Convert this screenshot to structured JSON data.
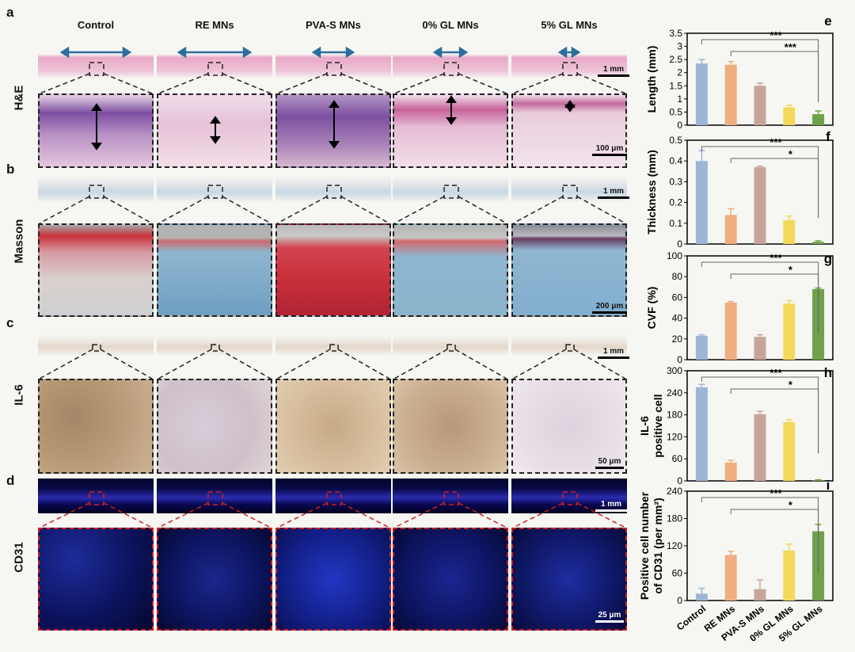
{
  "panels": {
    "a": "a",
    "b": "b",
    "c": "c",
    "d": "d",
    "e": "e",
    "f": "f",
    "g": "g",
    "h": "h",
    "i": "i"
  },
  "columns": [
    "Control",
    "RE MNs",
    "PVA-S MNs",
    "0% GL MNs",
    "5% GL MNs"
  ],
  "rows": {
    "he": "H&E",
    "masson": "Masson",
    "il6": "IL-6",
    "cd31": "CD31"
  },
  "scalebars": {
    "he_top": "1 mm",
    "he_zoom": "100 μm",
    "masson_top": "1 mm",
    "masson_zoom": "200 μm",
    "il6_top": "1 mm",
    "il6_zoom": "50 μm",
    "cd31_top": "1 mm",
    "cd31_zoom": "25 μm"
  },
  "colors": {
    "Control": "#9db5d6",
    "RE MNs": "#efae80",
    "PVA-S MNs": "#c7a49a",
    "0% GL MNs": "#f4d85c",
    "5% GL MNs": "#6ea14a",
    "he_pink": "#e8a9c6",
    "he_purple": "#7d4fa0",
    "masson_blue": "#8fb6d0",
    "masson_red": "#c8303a",
    "il6_brown": "#b99a78",
    "cd31_blue": "#1b2a9a",
    "cd31_red": "#ff2a1a"
  },
  "chart_data": [
    {
      "id": "e",
      "type": "bar",
      "ylabel": "Length (mm)",
      "categories": [
        "Control",
        "RE MNs",
        "PVA-S MNs",
        "0% GL MNs",
        "5% GL MNs"
      ],
      "values": [
        2.35,
        2.3,
        1.5,
        0.68,
        0.42
      ],
      "errors": [
        0.15,
        0.12,
        0.1,
        0.08,
        0.12
      ],
      "ylim": [
        0,
        3.5
      ],
      "yticks": [
        "0",
        "0.5",
        "1",
        "1.5",
        "2",
        "2.5",
        "3",
        "3.5"
      ],
      "significance": [
        {
          "from": "Control",
          "to": "5% GL MNs",
          "label": "***"
        },
        {
          "from": "RE MNs",
          "to": "5% GL MNs",
          "label": "***"
        }
      ]
    },
    {
      "id": "f",
      "type": "bar",
      "ylabel": "Thickness (mm)",
      "categories": [
        "Control",
        "RE MNs",
        "PVA-S MNs",
        "0% GL MNs",
        "5% GL MNs"
      ],
      "values": [
        0.4,
        0.14,
        0.37,
        0.115,
        0.01
      ],
      "errors": [
        0.05,
        0.03,
        0.005,
        0.02,
        0.005
      ],
      "ylim": [
        0,
        0.5
      ],
      "yticks": [
        "0",
        "0.1",
        "0.2",
        "0.3",
        "0.4",
        "0.5"
      ],
      "significance": [
        {
          "from": "Control",
          "to": "5% GL MNs",
          "label": "***"
        },
        {
          "from": "RE MNs",
          "to": "5% GL MNs",
          "label": "*"
        }
      ]
    },
    {
      "id": "g",
      "type": "bar",
      "ylabel": "CVF (%)",
      "categories": [
        "Control",
        "RE MNs",
        "PVA-S MNs",
        "0% GL MNs",
        "5% GL MNs"
      ],
      "values": [
        23,
        55,
        22,
        54,
        68
      ],
      "errors": [
        1,
        1,
        2,
        3,
        1
      ],
      "ylim": [
        0,
        100
      ],
      "yticks": [
        "0",
        "20",
        "40",
        "60",
        "80",
        "100"
      ],
      "significance": [
        {
          "from": "Control",
          "to": "5% GL MNs",
          "label": "***"
        },
        {
          "from": "RE MNs",
          "to": "5% GL MNs",
          "label": "*"
        }
      ]
    },
    {
      "id": "h",
      "type": "bar",
      "ylabel": "IL-6\npositive cell",
      "categories": [
        "Control",
        "RE MNs",
        "PVA-S MNs",
        "0% GL MNs",
        "5% GL MNs"
      ],
      "values": [
        255,
        50,
        182,
        160,
        2
      ],
      "errors": [
        8,
        6,
        8,
        7,
        1
      ],
      "ylim": [
        0,
        300
      ],
      "yticks": [
        "0",
        "60",
        "120",
        "180",
        "240",
        "300"
      ],
      "significance": [
        {
          "from": "Control",
          "to": "5% GL MNs",
          "label": "***"
        },
        {
          "from": "RE MNs",
          "to": "5% GL MNs",
          "label": "*"
        }
      ]
    },
    {
      "id": "i",
      "type": "bar",
      "ylabel": "Positive cell number\nof CD31 (per mm²)",
      "categories": [
        "Control",
        "RE MNs",
        "PVA-S MNs",
        "0% GL MNs",
        "5% GL MNs"
      ],
      "values": [
        15,
        100,
        25,
        110,
        152
      ],
      "errors": [
        12,
        8,
        20,
        14,
        15
      ],
      "ylim": [
        0,
        240
      ],
      "yticks": [
        "0",
        "60",
        "120",
        "180",
        "240"
      ],
      "significance": [
        {
          "from": "Control",
          "to": "5% GL MNs",
          "label": "***"
        },
        {
          "from": "RE MNs",
          "to": "5% GL MNs",
          "label": "*"
        }
      ]
    }
  ]
}
